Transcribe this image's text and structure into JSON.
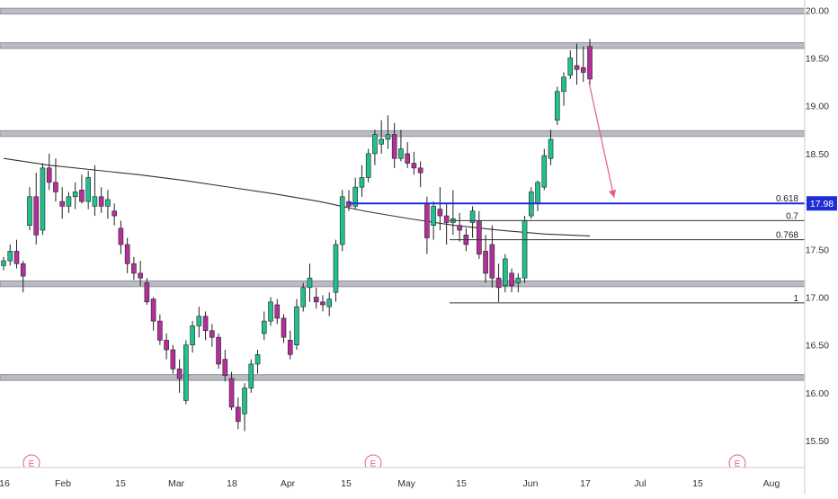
{
  "chart_data": {
    "type": "candlestick",
    "y_axis": {
      "side": "right",
      "range": [
        15.3,
        20.1
      ],
      "ticks": [
        "15.50",
        "16.00",
        "16.50",
        "17.00",
        "17.50",
        "18.00",
        "18.50",
        "19.00",
        "19.50",
        "20.00"
      ]
    },
    "x_axis": {
      "ticks": [
        "16",
        "Feb",
        "15",
        "Mar",
        "18",
        "Apr",
        "15",
        "May",
        "15",
        "Jun",
        "17",
        "Jul",
        "15",
        "Aug"
      ]
    },
    "current_price": {
      "value": 17.98,
      "label": "17.98",
      "color": "#1e2dd6"
    },
    "horizontal_zones": [
      {
        "low": 19.96,
        "high": 20.02
      },
      {
        "low": 19.6,
        "high": 19.66
      },
      {
        "low": 18.68,
        "high": 18.74
      },
      {
        "low": 17.11,
        "high": 17.17
      },
      {
        "low": 16.13,
        "high": 16.19
      }
    ],
    "fib_levels": [
      {
        "label": "0.618",
        "value": 17.98
      },
      {
        "label": "0.7",
        "value": 17.8
      },
      {
        "label": "0.768",
        "value": 17.6
      },
      {
        "label": "1",
        "value": 16.94
      }
    ],
    "earnings_markers": [
      "E",
      "E",
      "E"
    ],
    "projection_arrow": {
      "from": 19.25,
      "to": 18.04,
      "color": "#e0607e"
    },
    "series": [
      {
        "name": "moving-average",
        "color": "#333333",
        "values": [
          18.45,
          18.38,
          18.33,
          18.28,
          18.22,
          18.15,
          18.08,
          18.0,
          17.9,
          17.82,
          17.75,
          17.7,
          17.66,
          17.64
        ]
      }
    ],
    "candles": [
      [
        17.33,
        17.42,
        17.28,
        17.38
      ],
      [
        17.38,
        17.55,
        17.33,
        17.48
      ],
      [
        17.48,
        17.6,
        17.3,
        17.35
      ],
      [
        17.35,
        17.38,
        17.05,
        17.22
      ],
      [
        17.75,
        18.15,
        17.7,
        18.05
      ],
      [
        18.05,
        18.3,
        17.55,
        17.65
      ],
      [
        17.7,
        18.4,
        17.65,
        18.35
      ],
      [
        18.35,
        18.5,
        18.12,
        18.2
      ],
      [
        18.2,
        18.45,
        18.0,
        18.1
      ],
      [
        18.0,
        18.15,
        17.82,
        17.95
      ],
      [
        17.95,
        18.1,
        17.88,
        18.05
      ],
      [
        18.05,
        18.2,
        17.92,
        18.1
      ],
      [
        18.12,
        18.28,
        17.98,
        18.0
      ],
      [
        18.0,
        18.32,
        17.92,
        18.25
      ],
      [
        17.95,
        18.38,
        17.85,
        18.05
      ],
      [
        18.05,
        18.15,
        17.88,
        17.95
      ],
      [
        17.95,
        18.12,
        17.82,
        18.02
      ],
      [
        17.9,
        17.98,
        17.75,
        17.85
      ],
      [
        17.72,
        17.8,
        17.45,
        17.55
      ],
      [
        17.55,
        17.62,
        17.25,
        17.35
      ],
      [
        17.35,
        17.42,
        17.18,
        17.25
      ],
      [
        17.25,
        17.38,
        17.12,
        17.2
      ],
      [
        17.15,
        17.2,
        16.92,
        16.95
      ],
      [
        16.98,
        17.0,
        16.65,
        16.75
      ],
      [
        16.75,
        16.82,
        16.5,
        16.55
      ],
      [
        16.55,
        16.62,
        16.35,
        16.45
      ],
      [
        16.45,
        16.5,
        16.2,
        16.25
      ],
      [
        16.25,
        16.35,
        16.0,
        16.15
      ],
      [
        15.92,
        16.55,
        15.88,
        16.5
      ],
      [
        16.5,
        16.75,
        16.42,
        16.7
      ],
      [
        16.7,
        16.9,
        16.58,
        16.8
      ],
      [
        16.8,
        16.85,
        16.55,
        16.65
      ],
      [
        16.65,
        16.72,
        16.48,
        16.58
      ],
      [
        16.58,
        16.62,
        16.25,
        16.3
      ],
      [
        16.35,
        16.45,
        16.12,
        16.18
      ],
      [
        16.15,
        16.22,
        15.82,
        15.85
      ],
      [
        15.85,
        15.95,
        15.62,
        15.7
      ],
      [
        15.78,
        16.1,
        15.6,
        16.05
      ],
      [
        16.05,
        16.35,
        16.0,
        16.3
      ],
      [
        16.3,
        16.45,
        16.2,
        16.4
      ],
      [
        16.62,
        16.85,
        16.55,
        16.75
      ],
      [
        16.75,
        17.0,
        16.7,
        16.95
      ],
      [
        16.92,
        16.98,
        16.72,
        16.78
      ],
      [
        16.78,
        16.82,
        16.52,
        16.58
      ],
      [
        16.55,
        16.65,
        16.35,
        16.4
      ],
      [
        16.5,
        16.98,
        16.45,
        16.9
      ],
      [
        16.9,
        17.15,
        16.85,
        17.1
      ],
      [
        17.1,
        17.35,
        16.95,
        17.2
      ],
      [
        17.0,
        17.1,
        16.88,
        16.95
      ],
      [
        16.95,
        17.02,
        16.85,
        16.92
      ],
      [
        16.9,
        17.05,
        16.8,
        16.98
      ],
      [
        17.05,
        17.6,
        16.95,
        17.55
      ],
      [
        17.55,
        18.12,
        17.48,
        18.05
      ],
      [
        18.0,
        18.12,
        17.9,
        17.95
      ],
      [
        17.95,
        18.25,
        17.92,
        18.15
      ],
      [
        18.15,
        18.38,
        18.05,
        18.25
      ],
      [
        18.25,
        18.55,
        18.2,
        18.5
      ],
      [
        18.5,
        18.75,
        18.38,
        18.7
      ],
      [
        18.6,
        18.85,
        18.5,
        18.65
      ],
      [
        18.65,
        18.9,
        18.55,
        18.7
      ],
      [
        18.7,
        18.82,
        18.35,
        18.45
      ],
      [
        18.45,
        18.75,
        18.42,
        18.55
      ],
      [
        18.5,
        18.62,
        18.35,
        18.4
      ],
      [
        18.4,
        18.52,
        18.28,
        18.35
      ],
      [
        18.35,
        18.42,
        18.15,
        18.3
      ],
      [
        17.98,
        18.05,
        17.45,
        17.62
      ],
      [
        17.75,
        18.0,
        17.6,
        17.95
      ],
      [
        17.92,
        18.15,
        17.7,
        17.85
      ],
      [
        17.85,
        17.98,
        17.55,
        17.78
      ],
      [
        17.78,
        18.12,
        17.65,
        17.82
      ],
      [
        17.75,
        17.88,
        17.58,
        17.7
      ],
      [
        17.65,
        17.72,
        17.48,
        17.55
      ],
      [
        17.78,
        17.95,
        17.62,
        17.9
      ],
      [
        17.8,
        17.9,
        17.4,
        17.45
      ],
      [
        17.48,
        17.65,
        17.15,
        17.25
      ],
      [
        17.55,
        17.75,
        17.1,
        17.2
      ],
      [
        17.2,
        17.35,
        16.95,
        17.1
      ],
      [
        17.12,
        17.45,
        17.05,
        17.4
      ],
      [
        17.25,
        17.3,
        17.05,
        17.12
      ],
      [
        17.15,
        17.25,
        17.05,
        17.2
      ],
      [
        17.2,
        17.85,
        17.15,
        17.8
      ],
      [
        17.85,
        18.15,
        17.82,
        18.1
      ],
      [
        17.98,
        18.22,
        17.9,
        18.2
      ],
      [
        18.15,
        18.55,
        18.12,
        18.48
      ],
      [
        18.45,
        18.75,
        18.38,
        18.65
      ],
      [
        18.85,
        19.2,
        18.8,
        19.15
      ],
      [
        19.15,
        19.35,
        19.0,
        19.3
      ],
      [
        19.32,
        19.58,
        19.28,
        19.5
      ],
      [
        19.42,
        19.65,
        19.22,
        19.38
      ],
      [
        19.4,
        19.62,
        19.25,
        19.35
      ],
      [
        19.62,
        19.7,
        19.22,
        19.28
      ]
    ]
  }
}
